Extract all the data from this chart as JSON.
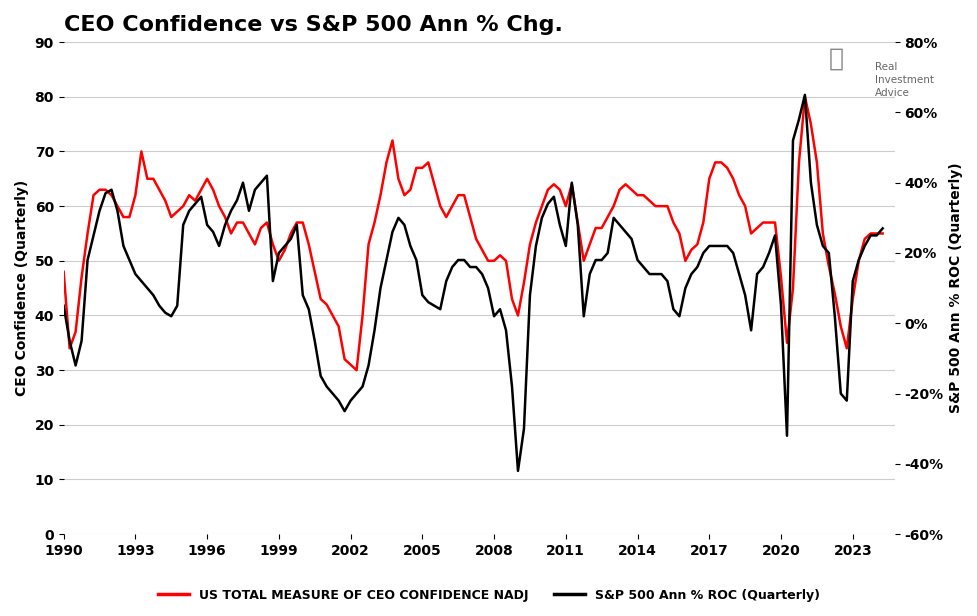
{
  "title": "CEO Confidence vs S&P 500 Ann % Chg.",
  "ylabel_left": "CEO Confidence (Quarterly)",
  "ylabel_right": "S&P 500 Ann % ROC (Quarterly)",
  "ylim_left": [
    0,
    90
  ],
  "ylim_right": [
    -60,
    80
  ],
  "yticks_left": [
    0,
    10,
    20,
    30,
    40,
    50,
    60,
    70,
    80,
    90
  ],
  "yticks_right_vals": [
    -60,
    -40,
    -20,
    0,
    20,
    40,
    60,
    80
  ],
  "yticks_right_labels": [
    "-60%",
    "-40%",
    "-20%",
    "0%",
    "20%",
    "40%",
    "60%",
    "80%"
  ],
  "xticks": [
    1990,
    1993,
    1996,
    1999,
    2002,
    2005,
    2008,
    2011,
    2014,
    2017,
    2020,
    2023
  ],
  "xlim": [
    1990.0,
    2024.75
  ],
  "legend1": "US TOTAL MEASURE OF CEO CONFIDENCE NADJ",
  "legend2": "S&P 500 Ann % ROC (Quarterly)",
  "color_ceo": "#FF0000",
  "color_sp500": "#000000",
  "background_color": "#FFFFFF",
  "grid_color": "#CCCCCC",
  "title_fontsize": 16,
  "label_fontsize": 10,
  "tick_fontsize": 10,
  "ceo_dates": [
    1990.0,
    1990.25,
    1990.5,
    1990.75,
    1991.0,
    1991.25,
    1991.5,
    1991.75,
    1992.0,
    1992.25,
    1992.5,
    1992.75,
    1993.0,
    1993.25,
    1993.5,
    1993.75,
    1994.0,
    1994.25,
    1994.5,
    1994.75,
    1995.0,
    1995.25,
    1995.5,
    1995.75,
    1996.0,
    1996.25,
    1996.5,
    1996.75,
    1997.0,
    1997.25,
    1997.5,
    1997.75,
    1998.0,
    1998.25,
    1998.5,
    1998.75,
    1999.0,
    1999.25,
    1999.5,
    1999.75,
    2000.0,
    2000.25,
    2000.5,
    2000.75,
    2001.0,
    2001.25,
    2001.5,
    2001.75,
    2002.0,
    2002.25,
    2002.5,
    2002.75,
    2003.0,
    2003.25,
    2003.5,
    2003.75,
    2004.0,
    2004.25,
    2004.5,
    2004.75,
    2005.0,
    2005.25,
    2005.5,
    2005.75,
    2006.0,
    2006.25,
    2006.5,
    2006.75,
    2007.0,
    2007.25,
    2007.5,
    2007.75,
    2008.0,
    2008.25,
    2008.5,
    2008.75,
    2009.0,
    2009.25,
    2009.5,
    2009.75,
    2010.0,
    2010.25,
    2010.5,
    2010.75,
    2011.0,
    2011.25,
    2011.5,
    2011.75,
    2012.0,
    2012.25,
    2012.5,
    2012.75,
    2013.0,
    2013.25,
    2013.5,
    2013.75,
    2014.0,
    2014.25,
    2014.5,
    2014.75,
    2015.0,
    2015.25,
    2015.5,
    2015.75,
    2016.0,
    2016.25,
    2016.5,
    2016.75,
    2017.0,
    2017.25,
    2017.5,
    2017.75,
    2018.0,
    2018.25,
    2018.5,
    2018.75,
    2019.0,
    2019.25,
    2019.5,
    2019.75,
    2020.0,
    2020.25,
    2020.5,
    2020.75,
    2021.0,
    2021.25,
    2021.5,
    2021.75,
    2022.0,
    2022.25,
    2022.5,
    2022.75,
    2023.0,
    2023.25,
    2023.5,
    2023.75,
    2024.0,
    2024.25
  ],
  "ceo_values": [
    48,
    34,
    37,
    47,
    55,
    62,
    63,
    63,
    62,
    60,
    58,
    58,
    62,
    70,
    65,
    65,
    63,
    61,
    58,
    59,
    60,
    62,
    61,
    63,
    65,
    63,
    60,
    58,
    55,
    57,
    57,
    55,
    53,
    56,
    57,
    53,
    50,
    52,
    55,
    57,
    57,
    53,
    48,
    43,
    42,
    40,
    38,
    32,
    31,
    30,
    40,
    53,
    57,
    62,
    68,
    72,
    65,
    62,
    63,
    67,
    67,
    68,
    64,
    60,
    58,
    60,
    62,
    62,
    58,
    54,
    52,
    50,
    50,
    51,
    50,
    43,
    40,
    46,
    53,
    57,
    60,
    63,
    64,
    63,
    60,
    64,
    57,
    50,
    53,
    56,
    56,
    58,
    60,
    63,
    64,
    63,
    62,
    62,
    61,
    60,
    60,
    60,
    57,
    55,
    50,
    52,
    53,
    57,
    65,
    68,
    68,
    67,
    65,
    62,
    60,
    55,
    56,
    57,
    57,
    57,
    47,
    35,
    45,
    68,
    80,
    75,
    68,
    55,
    49,
    44,
    38,
    34,
    43,
    50,
    54,
    55,
    55,
    55
  ],
  "sp500_dates": [
    1990.0,
    1990.25,
    1990.5,
    1990.75,
    1991.0,
    1991.25,
    1991.5,
    1991.75,
    1992.0,
    1992.25,
    1992.5,
    1992.75,
    1993.0,
    1993.25,
    1993.5,
    1993.75,
    1994.0,
    1994.25,
    1994.5,
    1994.75,
    1995.0,
    1995.25,
    1995.5,
    1995.75,
    1996.0,
    1996.25,
    1996.5,
    1996.75,
    1997.0,
    1997.25,
    1997.5,
    1997.75,
    1998.0,
    1998.25,
    1998.5,
    1998.75,
    1999.0,
    1999.25,
    1999.5,
    1999.75,
    2000.0,
    2000.25,
    2000.5,
    2000.75,
    2001.0,
    2001.25,
    2001.5,
    2001.75,
    2002.0,
    2002.25,
    2002.5,
    2002.75,
    2003.0,
    2003.25,
    2003.5,
    2003.75,
    2004.0,
    2004.25,
    2004.5,
    2004.75,
    2005.0,
    2005.25,
    2005.5,
    2005.75,
    2006.0,
    2006.25,
    2006.5,
    2006.75,
    2007.0,
    2007.25,
    2007.5,
    2007.75,
    2008.0,
    2008.25,
    2008.5,
    2008.75,
    2009.0,
    2009.25,
    2009.5,
    2009.75,
    2010.0,
    2010.25,
    2010.5,
    2010.75,
    2011.0,
    2011.25,
    2011.5,
    2011.75,
    2012.0,
    2012.25,
    2012.5,
    2012.75,
    2013.0,
    2013.25,
    2013.5,
    2013.75,
    2014.0,
    2014.25,
    2014.5,
    2014.75,
    2015.0,
    2015.25,
    2015.5,
    2015.75,
    2016.0,
    2016.25,
    2016.5,
    2016.75,
    2017.0,
    2017.25,
    2017.5,
    2017.75,
    2018.0,
    2018.25,
    2018.5,
    2018.75,
    2019.0,
    2019.25,
    2019.5,
    2019.75,
    2020.0,
    2020.25,
    2020.5,
    2020.75,
    2021.0,
    2021.25,
    2021.5,
    2021.75,
    2022.0,
    2022.25,
    2022.5,
    2022.75,
    2023.0,
    2023.25,
    2023.5,
    2023.75,
    2024.0,
    2024.25
  ],
  "sp500_values": [
    5,
    -5,
    -12,
    -5,
    18,
    25,
    32,
    37,
    38,
    32,
    22,
    18,
    14,
    12,
    10,
    8,
    5,
    3,
    2,
    5,
    28,
    32,
    34,
    36,
    28,
    26,
    22,
    28,
    32,
    35,
    40,
    32,
    38,
    40,
    42,
    12,
    20,
    22,
    24,
    28,
    8,
    4,
    -5,
    -15,
    -18,
    -20,
    -22,
    -25,
    -22,
    -20,
    -18,
    -12,
    -2,
    10,
    18,
    26,
    30,
    28,
    22,
    18,
    8,
    6,
    5,
    4,
    12,
    16,
    18,
    18,
    16,
    16,
    14,
    10,
    2,
    4,
    -2,
    -18,
    -42,
    -30,
    8,
    22,
    30,
    34,
    36,
    28,
    22,
    40,
    28,
    2,
    14,
    18,
    18,
    20,
    30,
    28,
    26,
    24,
    18,
    16,
    14,
    14,
    14,
    12,
    4,
    2,
    10,
    14,
    16,
    20,
    22,
    22,
    22,
    22,
    20,
    14,
    8,
    -2,
    14,
    16,
    20,
    25,
    5,
    -32,
    52,
    58,
    65,
    40,
    28,
    22,
    20,
    2,
    -20,
    -22,
    12,
    18,
    22,
    25,
    25,
    27
  ]
}
